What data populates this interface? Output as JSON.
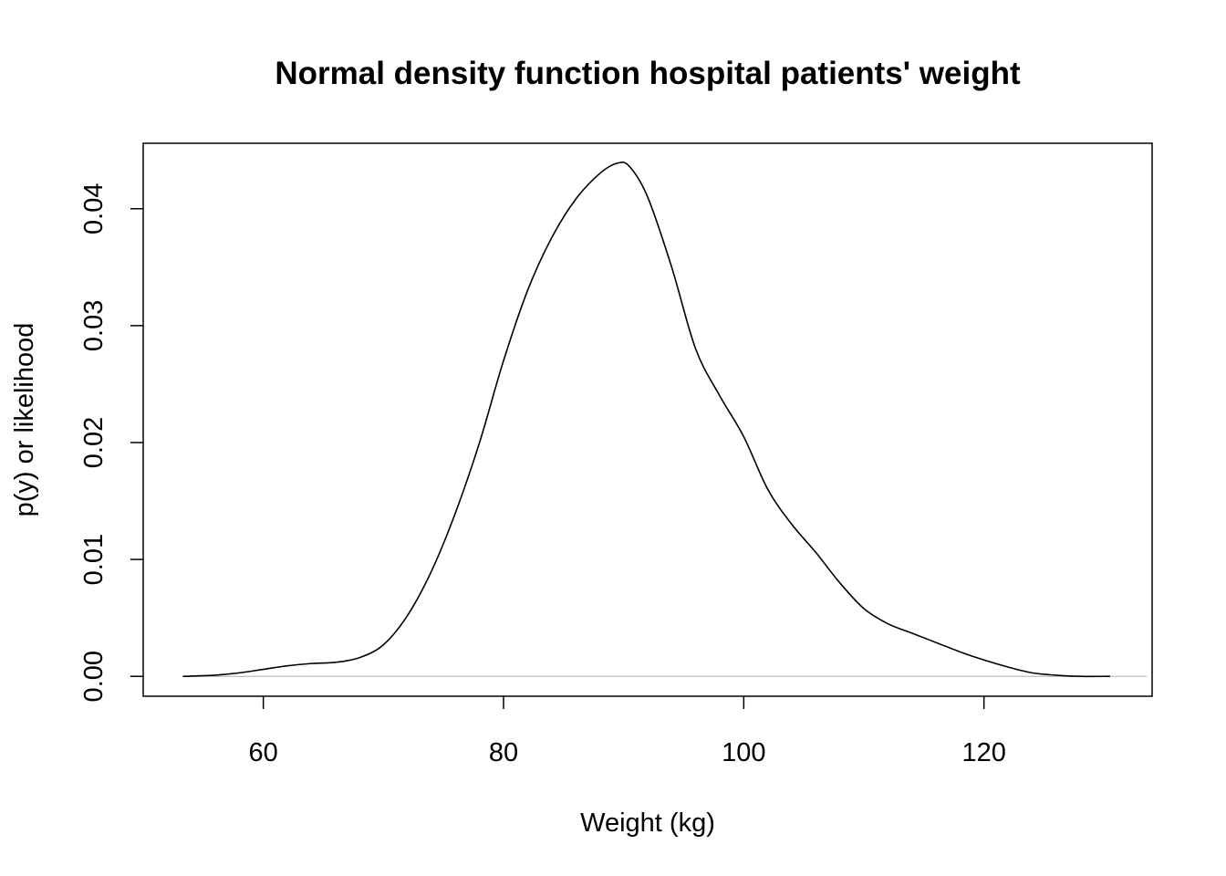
{
  "chart_data": {
    "type": "line",
    "title": "Normal density function hospital patients' weight",
    "xlabel": "Weight (kg)",
    "ylabel": "p(y) or likelihood",
    "xlim": [
      50,
      134
    ],
    "ylim": [
      -0.0017,
      0.0456
    ],
    "x_ticks": [
      60,
      80,
      100,
      120
    ],
    "x_tick_labels": [
      "60",
      "80",
      "100",
      "120"
    ],
    "y_ticks": [
      0.0,
      0.01,
      0.02,
      0.03,
      0.04
    ],
    "y_tick_labels": [
      "0.00",
      "0.01",
      "0.02",
      "0.03",
      "0.04"
    ],
    "grid": false,
    "baseline": {
      "y": 0,
      "color": "#bebebe"
    },
    "line_color": "#000000",
    "series": [
      {
        "x": [
          53.3,
          56,
          58,
          60,
          62,
          64,
          66,
          68,
          70,
          72,
          74,
          76,
          78,
          80,
          82,
          84,
          86,
          88,
          89.5,
          90.5,
          92,
          94,
          96,
          98,
          100,
          102,
          104,
          106,
          108,
          110,
          112,
          114,
          116,
          118,
          120,
          122,
          124,
          126,
          128,
          130.5
        ],
        "y": [
          0.0,
          0.0001,
          0.0003,
          0.0006,
          0.0009,
          0.0011,
          0.0012,
          0.0016,
          0.0027,
          0.0052,
          0.009,
          0.014,
          0.02,
          0.027,
          0.033,
          0.0375,
          0.0408,
          0.043,
          0.0439,
          0.0436,
          0.041,
          0.035,
          0.028,
          0.024,
          0.0205,
          0.016,
          0.013,
          0.0106,
          0.008,
          0.0058,
          0.0045,
          0.0037,
          0.0029,
          0.0021,
          0.0014,
          0.0008,
          0.0003,
          0.0001,
          0.0,
          0.0
        ]
      }
    ]
  }
}
